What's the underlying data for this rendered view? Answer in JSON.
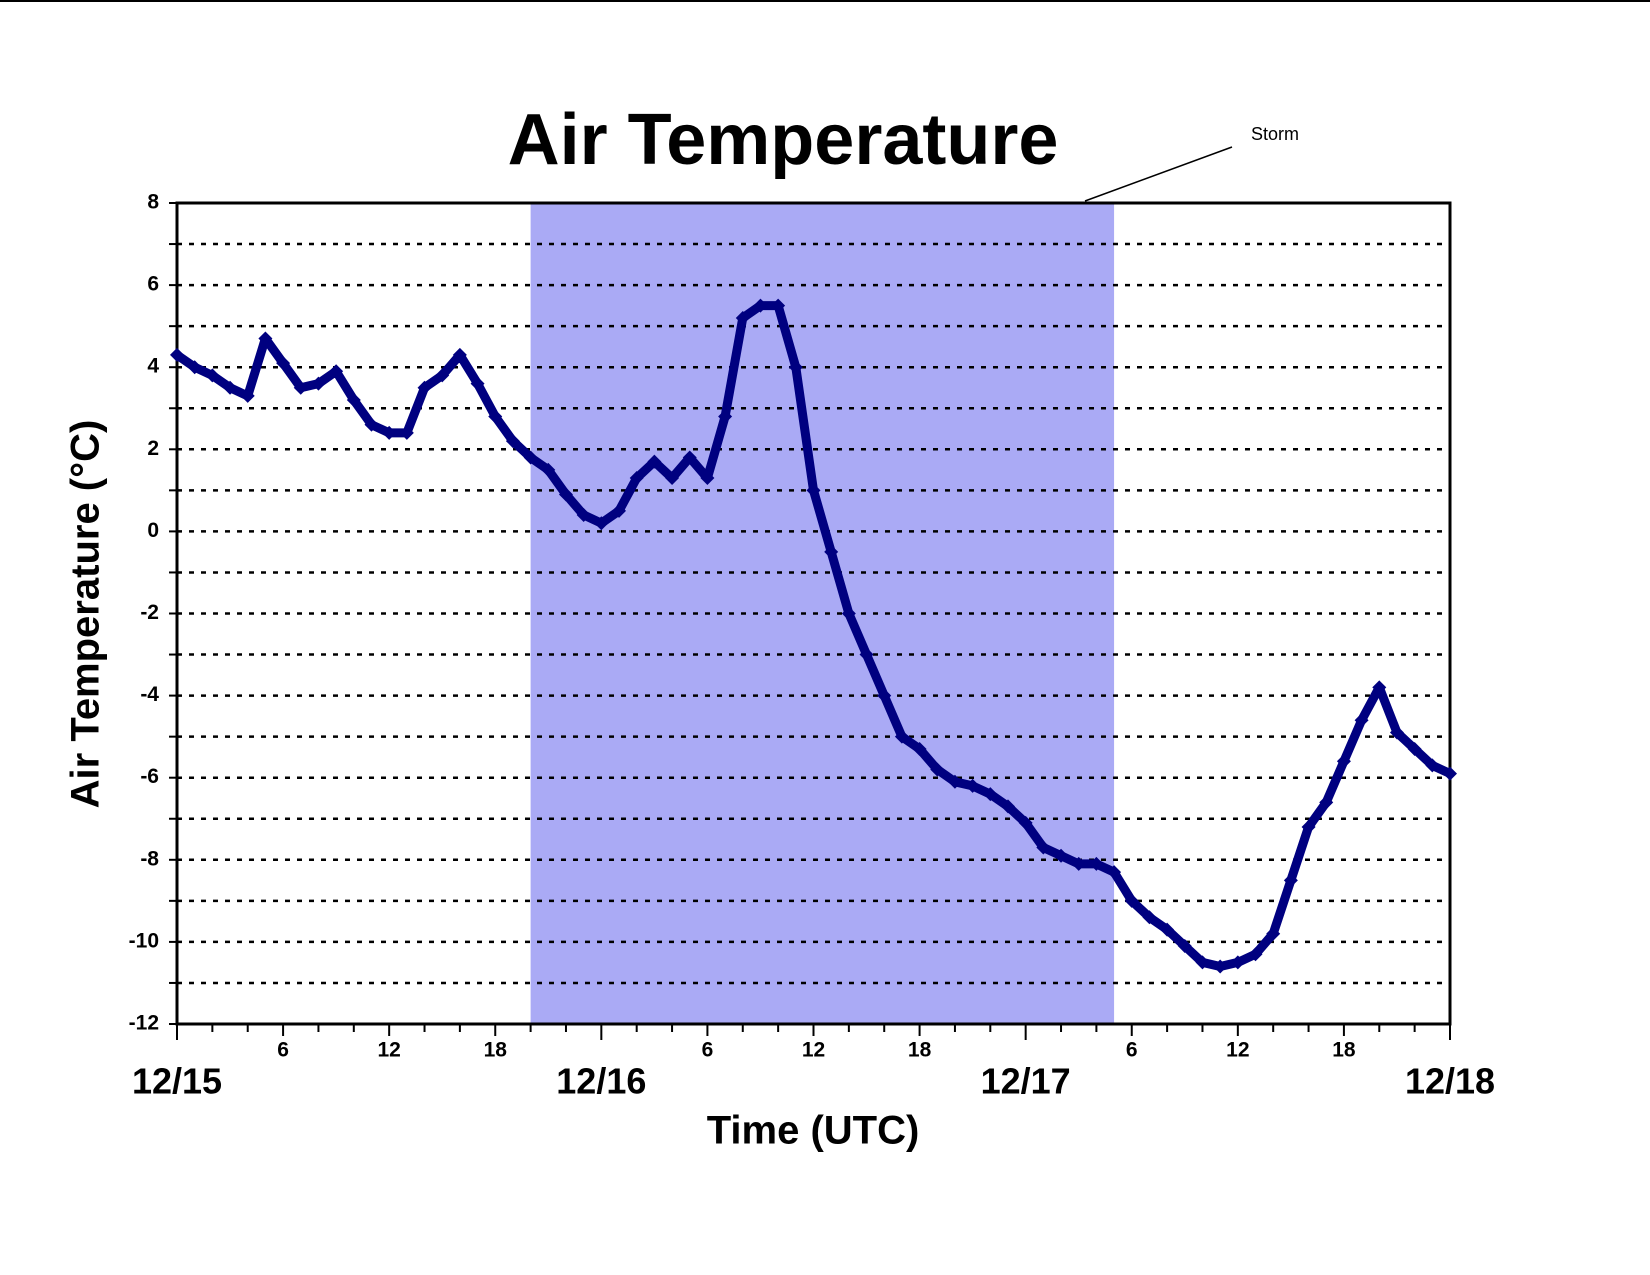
{
  "chart_data": {
    "type": "scatter",
    "title": "Air Temperature",
    "x_label": "Time (UTC)",
    "y_label": "Air Temperature (°C)",
    "annotation": {
      "text": "Storm",
      "x_start": 20,
      "x_end": 53,
      "color": "#aaaaf5"
    },
    "xlim": [
      0,
      72
    ],
    "ylim": [
      -12,
      8
    ],
    "xticks": [
      6,
      12,
      18,
      {
        "value": 30,
        "label": "6"
      },
      {
        "value": 36,
        "label": "12"
      },
      {
        "value": 42,
        "label": "18"
      },
      {
        "value": 54,
        "label": "6"
      },
      {
        "value": 60,
        "label": "12"
      },
      {
        "value": 66,
        "label": "18"
      }
    ],
    "date_ticks": [
      {
        "value": 0,
        "label": "12/15"
      },
      {
        "value": 24,
        "label": "12/16"
      },
      {
        "value": 48,
        "label": "12/17"
      },
      {
        "value": 72,
        "label": "12/18"
      }
    ],
    "xminor_ticks": [
      2,
      4,
      8,
      10,
      14,
      16,
      20,
      22,
      26,
      28,
      32,
      34,
      38,
      40,
      44,
      46,
      50,
      52,
      56,
      58,
      62,
      64,
      68,
      70
    ],
    "yticks": [
      -12,
      -10,
      -8,
      -6,
      -4,
      -2,
      0,
      2,
      4,
      6,
      8
    ],
    "yminor_ticks": [
      -11,
      -9,
      -7,
      -5,
      -3,
      -1,
      1,
      3,
      5,
      7
    ],
    "grid": true,
    "series": [
      {
        "name": "Air Temperature",
        "color": "#000080",
        "x": [
          0,
          1,
          2,
          3,
          4,
          5,
          6,
          7,
          8,
          9,
          10,
          11,
          12,
          13,
          14,
          15,
          16,
          17,
          18,
          19,
          20,
          21,
          22,
          23,
          24,
          25,
          26,
          27,
          28,
          29,
          30,
          31,
          32,
          33,
          34,
          35,
          36,
          37,
          38,
          39,
          40,
          41,
          42,
          43,
          44,
          45,
          46,
          47,
          48,
          49,
          50,
          51,
          52,
          53,
          54,
          55,
          56,
          57,
          58,
          59,
          60,
          61,
          62,
          63,
          64,
          65,
          66,
          67,
          68,
          69,
          70,
          71,
          72
        ],
        "values": [
          4.3,
          4.0,
          3.8,
          3.5,
          3.3,
          4.7,
          4.1,
          3.5,
          3.6,
          3.9,
          3.2,
          2.6,
          2.4,
          2.4,
          3.5,
          3.8,
          4.3,
          3.6,
          2.8,
          2.2,
          1.8,
          1.5,
          0.9,
          0.4,
          0.2,
          0.5,
          1.3,
          1.7,
          1.3,
          1.8,
          1.3,
          2.8,
          5.2,
          5.5,
          5.5,
          4.0,
          1.0,
          -0.5,
          -2.0,
          -3.0,
          -4.0,
          -5.0,
          -5.3,
          -5.8,
          -6.1,
          -6.2,
          -6.4,
          -6.7,
          -7.1,
          -7.7,
          -7.9,
          -8.1,
          -8.1,
          -8.3,
          -9.0,
          -9.4,
          -9.7,
          -10.1,
          -10.5,
          -10.6,
          -10.5,
          -10.3,
          -9.8,
          -8.5,
          -7.2,
          -6.6,
          -5.6,
          -4.6,
          -3.8,
          -4.9,
          -5.3,
          -5.7,
          -5.9
        ]
      }
    ]
  }
}
